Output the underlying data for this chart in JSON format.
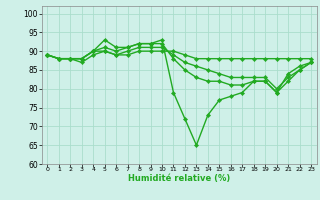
{
  "title": "",
  "xlabel": "Humidité relative (%)",
  "ylabel": "",
  "bg_color": "#cff0e8",
  "grid_color": "#aaddcc",
  "line_color": "#22aa22",
  "marker": "D",
  "markersize": 2.2,
  "linewidth": 1.0,
  "xlim": [
    -0.5,
    23.5
  ],
  "ylim": [
    60,
    102
  ],
  "yticks": [
    60,
    65,
    70,
    75,
    80,
    85,
    90,
    95,
    100
  ],
  "xticks": [
    0,
    1,
    2,
    3,
    4,
    5,
    6,
    7,
    8,
    9,
    10,
    11,
    12,
    13,
    14,
    15,
    16,
    17,
    18,
    19,
    20,
    21,
    22,
    23
  ],
  "series": [
    [
      89,
      88,
      88,
      88,
      90,
      93,
      91,
      91,
      92,
      92,
      93,
      79,
      72,
      65,
      73,
      77,
      78,
      79,
      82,
      82,
      79,
      84,
      86,
      87
    ],
    [
      89,
      88,
      88,
      88,
      90,
      91,
      90,
      91,
      92,
      92,
      92,
      88,
      85,
      83,
      82,
      82,
      81,
      81,
      82,
      82,
      79,
      82,
      85,
      87
    ],
    [
      89,
      88,
      88,
      87,
      89,
      90,
      89,
      90,
      91,
      91,
      91,
      89,
      87,
      86,
      85,
      84,
      83,
      83,
      83,
      83,
      80,
      83,
      85,
      87
    ],
    [
      89,
      88,
      88,
      88,
      90,
      90,
      89,
      89,
      90,
      90,
      90,
      90,
      89,
      88,
      88,
      88,
      88,
      88,
      88,
      88,
      88,
      88,
      88,
      88
    ]
  ]
}
